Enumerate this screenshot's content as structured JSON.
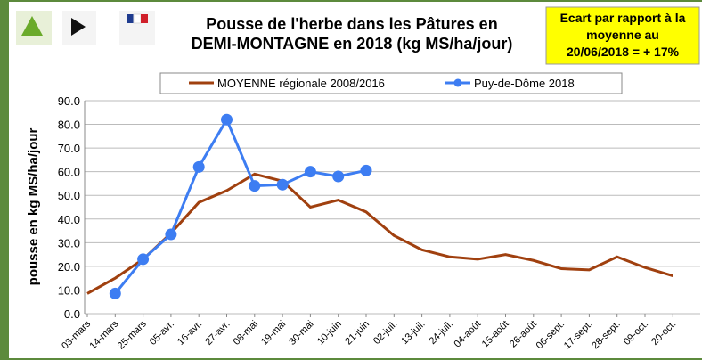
{
  "chart_data": {
    "type": "line",
    "title": [
      "Pousse de l'herbe dans les Pâtures en",
      "DEMI-MONTAGNE en 2018 (kg MS/ha/jour)"
    ],
    "annotation": [
      "Ecart par rapport à la",
      "moyenne au",
      "20/06/2018 = + 17%"
    ],
    "y_label": "pousse en kg MS/ha/jour",
    "categories": [
      "03-mars",
      "14-mars",
      "25-mars",
      "05-avr.",
      "16-avr.",
      "27-avr.",
      "08-mai",
      "19-mai",
      "30-mai",
      "10-juin",
      "21-juin",
      "02-juil.",
      "13-juil.",
      "24-juil.",
      "04-août",
      "15-août",
      "26-août",
      "06-sept.",
      "17-sept.",
      "28-sept.",
      "09-oct.",
      "20-oct."
    ],
    "series": [
      {
        "name": "MOYENNE régionale 2008/2016",
        "color": "#a0400f",
        "marker": false,
        "values": [
          8.5,
          15,
          23,
          34,
          47,
          52,
          59,
          56,
          45,
          48,
          43,
          33,
          27,
          24,
          23,
          25,
          22.5,
          19,
          18.5,
          24,
          19.5,
          16
        ]
      },
      {
        "name": "Puy-de-Dôme 2018",
        "color": "#3d7df2",
        "marker": true,
        "values": [
          null,
          8.5,
          23,
          33.5,
          62,
          82,
          54,
          54.5,
          60,
          58,
          60.5,
          null,
          null,
          null,
          null,
          null,
          null,
          null,
          null,
          null,
          null,
          null
        ]
      }
    ],
    "ylim": [
      0,
      90
    ],
    "yticks": [
      {
        "value": 0,
        "label": "0.0"
      },
      {
        "value": 10,
        "label": "10.0"
      },
      {
        "value": 20,
        "label": "20.0"
      },
      {
        "value": 30,
        "label": "30.0"
      },
      {
        "value": 40,
        "label": "40.0"
      },
      {
        "value": 50,
        "label": "50.0"
      },
      {
        "value": 60,
        "label": "60.0"
      },
      {
        "value": 70,
        "label": "70.0"
      },
      {
        "value": 80,
        "label": "80.0"
      },
      {
        "value": 90,
        "label": "90.0"
      }
    ],
    "grid": true,
    "legend": "top"
  }
}
